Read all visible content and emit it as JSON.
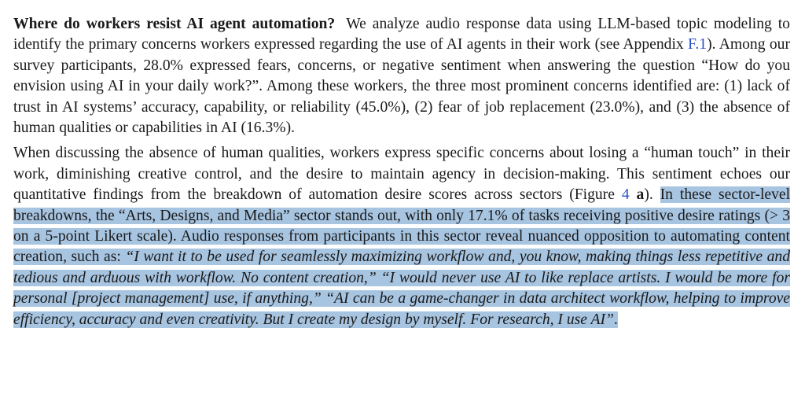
{
  "section": {
    "heading": "Where do workers resist AI agent automation?",
    "p1_a": "We analyze audio response data using LLM-based topic modeling to identify the primary concerns workers expressed regarding the use of AI agents in their work (see Appendix ",
    "p1_link": "F.1",
    "p1_b": "). Among our survey participants, 28.0% expressed fears, concerns, or negative sentiment when answering the question “How do you envision using AI in your daily work?”. Among these workers, the three most prominent concerns identified are: (1) lack of trust in AI systems’ accuracy, capability, or reliability (45.0%), (2) fear of job replacement (23.0%), and (3) the absence of human qualities or capabilities in AI (16.3%).",
    "p2_a": "When discussing the absence of human qualities, workers express specific concerns about losing a “human touch” in their work, diminishing creative control, and the desire to maintain agency in decision-making. This sentiment echoes our quantitative findings from the breakdown of automation desire scores across sectors (Figure ",
    "p2_fig": "4",
    "p2_fig_sub": "a",
    "p2_b": ").",
    "p2_hl_a": "In these sector-level breakdowns, the “Arts, Designs, and Media” sector stands out, with only 17.1% of tasks receiving positive desire ratings (> 3 on a 5-point Likert scale). Audio responses from participants in this sector reveal nuanced opposition to automating content creation, such as: ",
    "quote1": "“I want it to be used for seamlessly maximizing workflow and, you know, making things less repetitive and tedious and arduous with workflow. No content creation,”",
    "quote2": "“I would never use AI to like replace artists. I would be more for personal [project management] use, if anything,”",
    "quote3": "“AI can be a game-changer in data architect workflow, helping to improve efficiency, accuracy and even creativity. But I create my design by myself. For research, I use AI”",
    "p2_end": "."
  },
  "colors": {
    "highlight": "#a7c4e0",
    "link": "#2a50c8"
  }
}
